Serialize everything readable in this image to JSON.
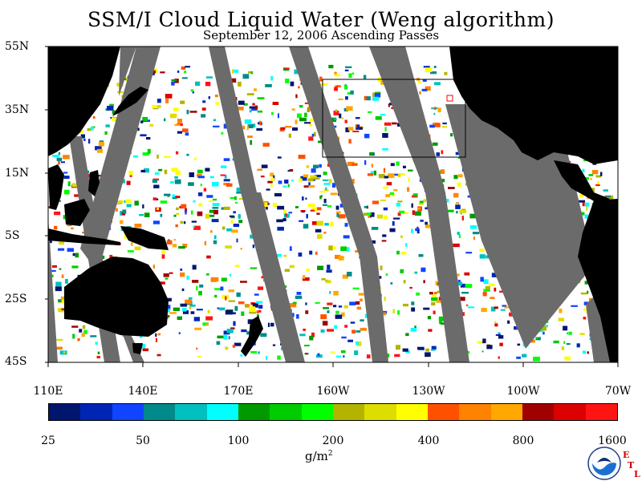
{
  "header": {
    "title": "SSM/I Cloud Liquid Water (Weng algorithm)",
    "subtitle": "September 12, 2006  Ascending Passes"
  },
  "axes": {
    "lat_labels": [
      "55N",
      "35N",
      "15N",
      "5S",
      "25S",
      "45S"
    ],
    "lon_labels": [
      "110E",
      "140E",
      "170E",
      "160W",
      "130W",
      "100W",
      "70W"
    ]
  },
  "colorbar": {
    "tick_labels": [
      "25",
      "50",
      "100",
      "200",
      "400",
      "800",
      "1600"
    ],
    "units": "g/m",
    "units_superscript": "2",
    "colors": [
      "#00156e",
      "#0025b4",
      "#1144ff",
      "#008a8a",
      "#00c0c0",
      "#00ffff",
      "#009a00",
      "#00cc00",
      "#00ff00",
      "#b4b400",
      "#dddd00",
      "#ffff00",
      "#ff5000",
      "#ff8200",
      "#ffa800",
      "#a00000",
      "#dc0000",
      "#ff1414"
    ]
  },
  "logos": {
    "noaa": "NOAA",
    "etl": [
      "E",
      "T",
      "L"
    ]
  },
  "map_colors": {
    "land": "#000000",
    "no_data": "#6b6b6b",
    "clear": "#ffffff",
    "box": "#000000",
    "marker": "#ff0000"
  }
}
